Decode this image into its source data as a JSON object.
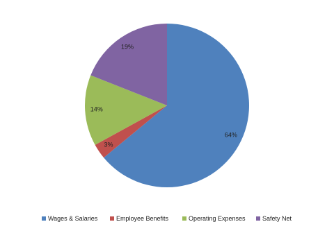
{
  "chart_data": {
    "type": "pie",
    "categories": [
      "Wages & Salaries",
      "Employee Benefits",
      "Operating Expenses",
      "Safety Net"
    ],
    "values": [
      64,
      3,
      14,
      19
    ],
    "value_labels": [
      "64%",
      "3%",
      "14%",
      "19%"
    ],
    "colors": [
      "#4f81bd",
      "#c0504d",
      "#9bbb59",
      "#8064a2"
    ],
    "legend": "bottom"
  }
}
